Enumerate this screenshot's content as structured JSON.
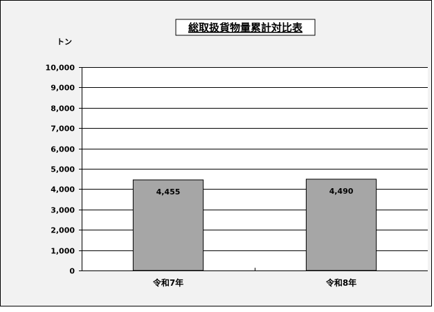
{
  "chart_data": {
    "type": "bar",
    "title": "総取扱貨物量累計対比表",
    "ylabel": "トン",
    "xlabel": "",
    "categories": [
      "令和7年",
      "令和8年"
    ],
    "values": [
      4455,
      4490
    ],
    "data_labels": [
      "4,455",
      "4,490"
    ],
    "ylim": [
      0,
      10000
    ],
    "yticks": [
      0,
      1000,
      2000,
      3000,
      4000,
      5000,
      6000,
      7000,
      8000,
      9000,
      10000
    ],
    "ytick_labels": [
      "0",
      "1,000",
      "2,000",
      "3,000",
      "4,000",
      "5,000",
      "6,000",
      "7,000",
      "8,000",
      "9,000",
      "10,000"
    ],
    "grid": true,
    "legend": "none",
    "colors": {
      "bar_fill": "#a6a6a6",
      "bar_stroke": "#000000",
      "chart_background": "#f2f2f2",
      "plot_background": "#ffffff",
      "gridline": "#000000"
    }
  }
}
